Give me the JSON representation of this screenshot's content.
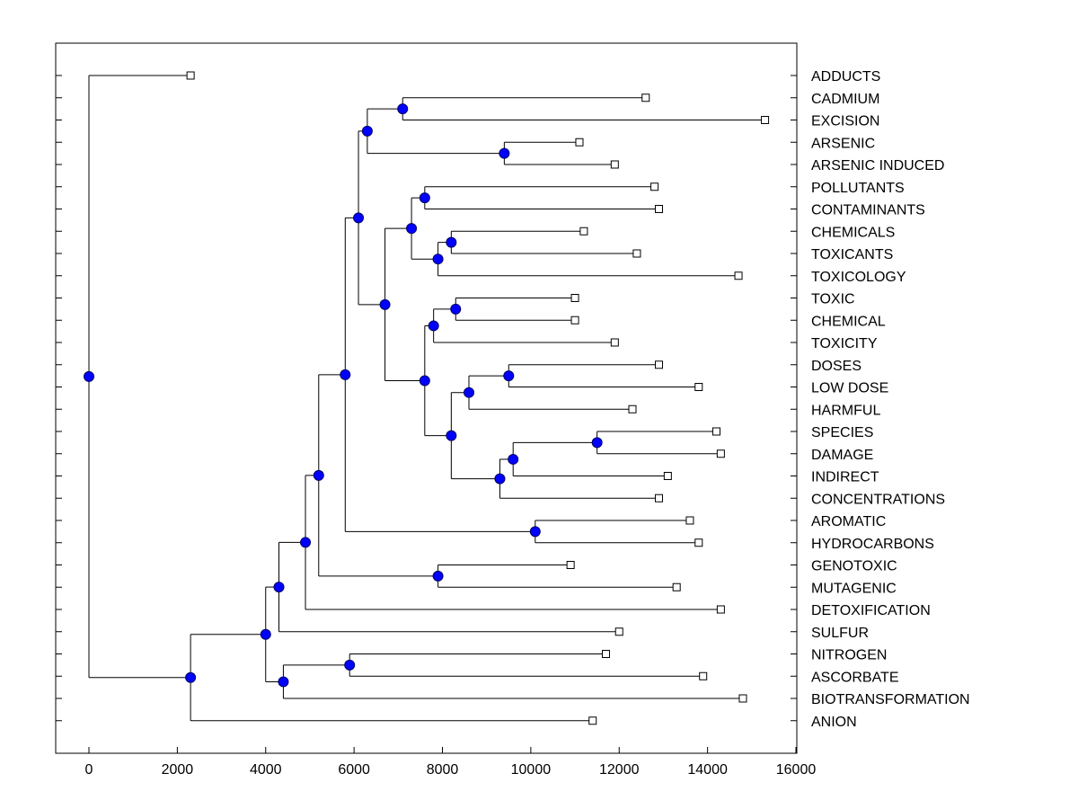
{
  "chart_data": {
    "type": "dendrogram",
    "title": "",
    "xlabel": "",
    "ylabel": "",
    "xlim": [
      -750,
      16000
    ],
    "xticks": [
      0,
      2000,
      4000,
      6000,
      8000,
      10000,
      12000,
      14000,
      16000
    ],
    "tick_labels": [
      "0",
      "2000",
      "4000",
      "6000",
      "8000",
      "10000",
      "12000",
      "14000",
      "16000"
    ],
    "leaves": [
      {
        "id": "L0",
        "label": "ADDUCTS",
        "x": 2300
      },
      {
        "id": "L1",
        "label": "CADMIUM",
        "x": 12600
      },
      {
        "id": "L2",
        "label": "EXCISION",
        "x": 15300
      },
      {
        "id": "L3",
        "label": "ARSENIC",
        "x": 11100
      },
      {
        "id": "L4",
        "label": "ARSENIC INDUCED",
        "x": 11900
      },
      {
        "id": "L5",
        "label": "POLLUTANTS",
        "x": 12800
      },
      {
        "id": "L6",
        "label": "CONTAMINANTS",
        "x": 12900
      },
      {
        "id": "L7",
        "label": "CHEMICALS",
        "x": 11200
      },
      {
        "id": "L8",
        "label": "TOXICANTS",
        "x": 12400
      },
      {
        "id": "L9",
        "label": "TOXICOLOGY",
        "x": 14700
      },
      {
        "id": "L10",
        "label": "TOXIC",
        "x": 11000
      },
      {
        "id": "L11",
        "label": "CHEMICAL",
        "x": 11000
      },
      {
        "id": "L12",
        "label": "TOXICITY",
        "x": 11900
      },
      {
        "id": "L13",
        "label": "DOSES",
        "x": 12900
      },
      {
        "id": "L14",
        "label": "LOW DOSE",
        "x": 13800
      },
      {
        "id": "L15",
        "label": "HARMFUL",
        "x": 12300
      },
      {
        "id": "L16",
        "label": "SPECIES",
        "x": 14200
      },
      {
        "id": "L17",
        "label": "DAMAGE",
        "x": 14300
      },
      {
        "id": "L18",
        "label": "INDIRECT",
        "x": 13100
      },
      {
        "id": "L19",
        "label": "CONCENTRATIONS",
        "x": 12900
      },
      {
        "id": "L20",
        "label": "AROMATIC",
        "x": 13600
      },
      {
        "id": "L21",
        "label": "HYDROCARBONS",
        "x": 13800
      },
      {
        "id": "L22",
        "label": "GENOTOXIC",
        "x": 10900
      },
      {
        "id": "L23",
        "label": "MUTAGENIC",
        "x": 13300
      },
      {
        "id": "L24",
        "label": "DETOXIFICATION",
        "x": 14300
      },
      {
        "id": "L25",
        "label": "SULFUR",
        "x": 12000
      },
      {
        "id": "L26",
        "label": "NITROGEN",
        "x": 11700
      },
      {
        "id": "L27",
        "label": "ASCORBATE",
        "x": 13900
      },
      {
        "id": "L28",
        "label": "BIOTRANSFORMATION",
        "x": 14800
      },
      {
        "id": "L29",
        "label": "ANION",
        "x": 11400
      }
    ],
    "merges": [
      {
        "id": "N1",
        "x": 7100,
        "children": [
          "L1",
          "L2"
        ]
      },
      {
        "id": "N2",
        "x": 9400,
        "children": [
          "L3",
          "L4"
        ]
      },
      {
        "id": "N3",
        "x": 6300,
        "children": [
          "N1",
          "N2"
        ]
      },
      {
        "id": "N4",
        "x": 7600,
        "children": [
          "L5",
          "L6"
        ]
      },
      {
        "id": "N5",
        "x": 8200,
        "children": [
          "L7",
          "L8"
        ]
      },
      {
        "id": "N6",
        "x": 7900,
        "children": [
          "N5",
          "L9"
        ]
      },
      {
        "id": "N7",
        "x": 7300,
        "children": [
          "N4",
          "N6"
        ]
      },
      {
        "id": "N8",
        "x": 8300,
        "children": [
          "L10",
          "L11"
        ]
      },
      {
        "id": "N9",
        "x": 7800,
        "children": [
          "N8",
          "L12"
        ]
      },
      {
        "id": "N10",
        "x": 9500,
        "children": [
          "L13",
          "L14"
        ]
      },
      {
        "id": "N11",
        "x": 8600,
        "children": [
          "N10",
          "L15"
        ]
      },
      {
        "id": "N12",
        "x": 11500,
        "children": [
          "L16",
          "L17"
        ]
      },
      {
        "id": "N13",
        "x": 9600,
        "children": [
          "N12",
          "L18"
        ]
      },
      {
        "id": "N14",
        "x": 9300,
        "children": [
          "N13",
          "L19"
        ]
      },
      {
        "id": "N15",
        "x": 8200,
        "children": [
          "N11",
          "N14"
        ]
      },
      {
        "id": "N16",
        "x": 7600,
        "children": [
          "N9",
          "N15"
        ]
      },
      {
        "id": "N17",
        "x": 6700,
        "children": [
          "N7",
          "N16"
        ]
      },
      {
        "id": "N18",
        "x": 6100,
        "children": [
          "N3",
          "N17"
        ]
      },
      {
        "id": "N19",
        "x": 10100,
        "children": [
          "L20",
          "L21"
        ]
      },
      {
        "id": "N20",
        "x": 5800,
        "children": [
          "N18",
          "N19"
        ]
      },
      {
        "id": "N21",
        "x": 7900,
        "children": [
          "L22",
          "L23"
        ]
      },
      {
        "id": "N22",
        "x": 5200,
        "children": [
          "N20",
          "N21"
        ]
      },
      {
        "id": "N23",
        "x": 4900,
        "children": [
          "N22",
          "L24"
        ]
      },
      {
        "id": "N24",
        "x": 4300,
        "children": [
          "N23",
          "L25"
        ]
      },
      {
        "id": "N25",
        "x": 5900,
        "children": [
          "L26",
          "L27"
        ]
      },
      {
        "id": "N26",
        "x": 4400,
        "children": [
          "N25",
          "L28"
        ]
      },
      {
        "id": "N27",
        "x": 4000,
        "children": [
          "N24",
          "N26"
        ]
      },
      {
        "id": "N28",
        "x": 2300,
        "children": [
          "N27",
          "L29"
        ]
      },
      {
        "id": "N29",
        "x": 0,
        "children": [
          "L0",
          "N28"
        ]
      }
    ],
    "colors": {
      "axis": "#000000",
      "branch": "#000000",
      "node_fill": "#0000ff",
      "node_stroke": "#000066",
      "leaf_fill": "#ffffff",
      "leaf_stroke": "#000000"
    }
  }
}
